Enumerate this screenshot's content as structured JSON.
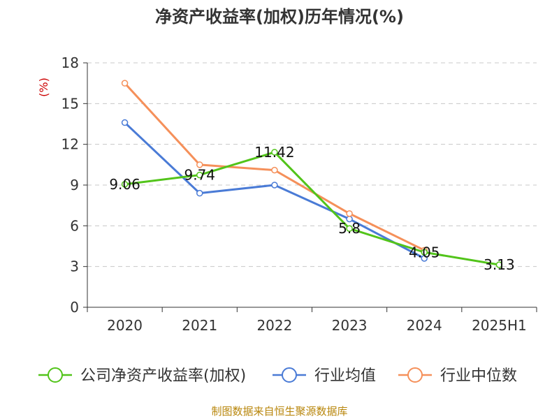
{
  "chart_data": {
    "type": "line",
    "title": "净资产收益率(加权)历年情况(%)",
    "unit_label": "(%)",
    "categories": [
      "2020",
      "2021",
      "2022",
      "2023",
      "2024",
      "2025H1"
    ],
    "ylim": [
      0,
      18
    ],
    "yticks": [
      0,
      3,
      6,
      9,
      12,
      15,
      18
    ],
    "grid": true,
    "legend_position": "bottom",
    "series": [
      {
        "name": "公司净资产收益率(加权)",
        "color": "#52c41a",
        "values": [
          9.06,
          9.74,
          11.42,
          5.8,
          4.05,
          3.13
        ],
        "labels": [
          "9.06",
          "9.74",
          "11.42",
          "5.8",
          "4.05",
          "3.13"
        ]
      },
      {
        "name": "行业均值",
        "color": "#4a7bd6",
        "values": [
          13.6,
          8.4,
          9.0,
          6.5,
          3.6,
          null
        ]
      },
      {
        "name": "行业中位数",
        "color": "#f5905a",
        "values": [
          16.5,
          10.5,
          10.1,
          6.9,
          4.2,
          null
        ]
      }
    ]
  },
  "source": "制图数据来自恒生聚源数据库"
}
